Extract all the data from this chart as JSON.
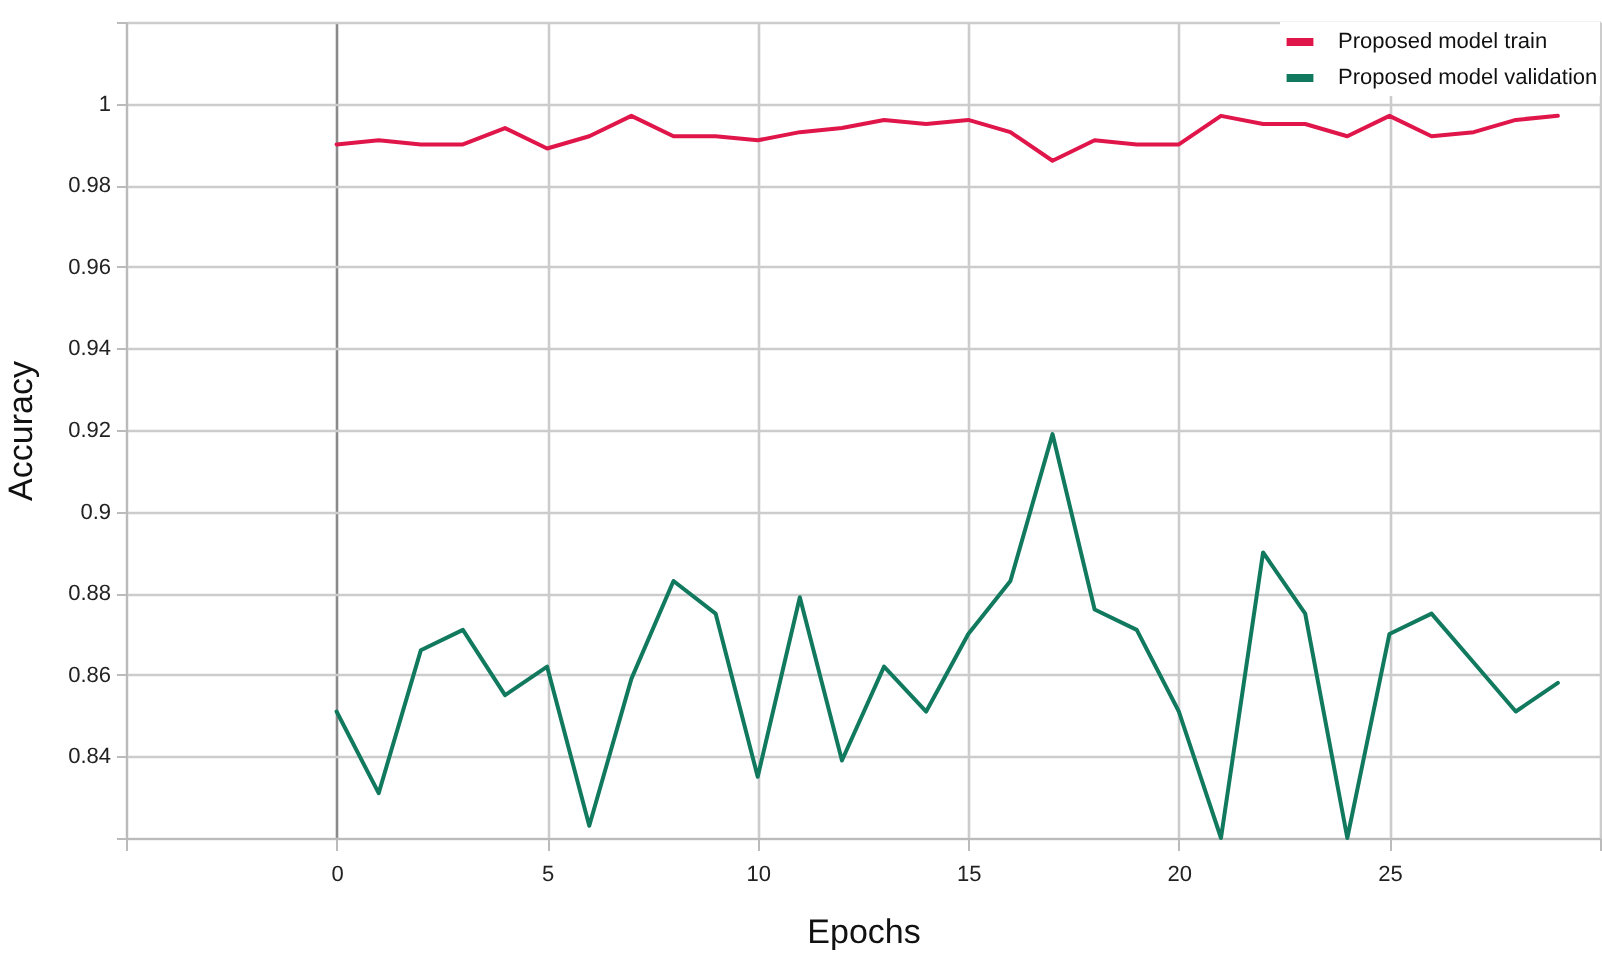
{
  "chart_data": {
    "type": "line",
    "xlabel": "Epochs",
    "ylabel": "Accuracy",
    "x": [
      0,
      1,
      2,
      3,
      4,
      5,
      6,
      7,
      8,
      9,
      10,
      11,
      12,
      13,
      14,
      15,
      16,
      17,
      18,
      19,
      20,
      21,
      22,
      23,
      24,
      25,
      26,
      27,
      28,
      29
    ],
    "series": [
      {
        "name": "Proposed model  train",
        "color": "#e0154a",
        "values": [
          0.99,
          0.991,
          0.99,
          0.99,
          0.994,
          0.989,
          0.992,
          0.997,
          0.992,
          0.992,
          0.991,
          0.993,
          0.994,
          0.996,
          0.995,
          0.996,
          0.993,
          0.986,
          0.991,
          0.99,
          0.99,
          0.997,
          0.995,
          0.995,
          0.992,
          0.997,
          0.992,
          0.993,
          0.996,
          0.997
        ]
      },
      {
        "name": "Proposed model validation",
        "color": "#117a5e",
        "values": [
          0.851,
          0.831,
          0.866,
          0.871,
          0.855,
          0.862,
          0.823,
          0.859,
          0.883,
          0.875,
          0.835,
          0.879,
          0.839,
          0.862,
          0.851,
          0.87,
          0.883,
          0.919,
          0.876,
          0.871,
          0.851,
          0.82,
          0.89,
          0.875,
          0.82,
          0.87,
          0.875,
          0.863,
          0.851,
          0.858
        ]
      }
    ],
    "xlim": [
      -5,
      30
    ],
    "xticks": [
      {
        "value": -5,
        "label": null
      },
      0,
      5,
      10,
      15,
      20,
      25,
      {
        "value": 30,
        "label": null
      }
    ],
    "ylim": [
      0.82,
      1.02
    ],
    "yticks": [
      {
        "value": 0.82,
        "label": null
      },
      0.84,
      0.86,
      0.88,
      0.9,
      0.92,
      0.94,
      0.96,
      0.98,
      1,
      {
        "value": 1.02,
        "label": null
      }
    ],
    "grid": true,
    "legend": "top right",
    "marker": "none",
    "line_style": "solid"
  }
}
